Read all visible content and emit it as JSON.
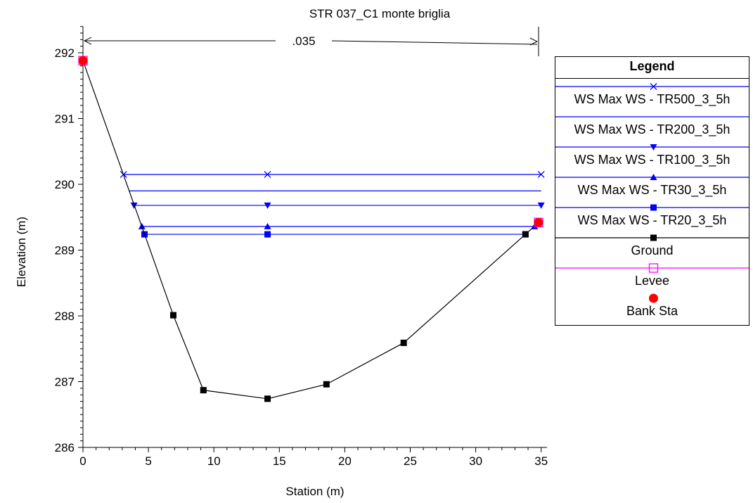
{
  "chart_data": {
    "type": "line",
    "title": "STR 037_C1 monte briglia",
    "xlabel": "Station (m)",
    "ylabel": "Elevation (m)",
    "xlim": [
      0,
      35
    ],
    "ylim": [
      286,
      292.4
    ],
    "xticks": [
      0,
      5,
      10,
      15,
      20,
      25,
      30,
      35
    ],
    "yticks": [
      286,
      287,
      288,
      289,
      290,
      291,
      292
    ],
    "xtick_labels": [
      "0",
      "5",
      "10",
      "15",
      "20",
      "25",
      "30",
      "35"
    ],
    "ytick_labels": [
      "286",
      "287",
      "288",
      "289",
      "290",
      "291",
      "292"
    ],
    "roughness": {
      "label": ".035",
      "x_start": 0,
      "x_end": 34.8
    },
    "legend_title": "Legend",
    "legend_position": "right",
    "grid": false,
    "series": [
      {
        "name": "WS Max WS - TR500_3_5h",
        "color": "#0000ff",
        "marker": "x",
        "x": [
          3.1,
          14.1,
          35
        ],
        "y": [
          290.15,
          290.15,
          290.15
        ]
      },
      {
        "name": "WS Max WS - TR200_3_5h",
        "color": "#0000ff",
        "marker": "none",
        "x": [
          3.5,
          35
        ],
        "y": [
          289.9,
          289.9
        ]
      },
      {
        "name": "WS Max WS - TR100_3_5h",
        "color": "#0000ff",
        "marker": "triangle-down",
        "x": [
          3.9,
          14.1,
          35
        ],
        "y": [
          289.68,
          289.68,
          289.68
        ]
      },
      {
        "name": "WS Max WS - TR30_3_5h",
        "color": "#0000ff",
        "marker": "triangle-up",
        "x": [
          4.5,
          14.1,
          34.5
        ],
        "y": [
          289.36,
          289.36,
          289.36
        ]
      },
      {
        "name": "WS Max WS - TR20_3_5h",
        "color": "#0000ff",
        "marker": "square",
        "x": [
          4.7,
          14.1,
          33.8
        ],
        "y": [
          289.24,
          289.24,
          289.24
        ]
      },
      {
        "name": "Ground",
        "color": "#000000",
        "marker": "square",
        "x": [
          0,
          6.9,
          9.2,
          14.1,
          18.6,
          24.5,
          33.8,
          34.8
        ],
        "y": [
          291.88,
          288.01,
          286.87,
          286.74,
          286.96,
          287.59,
          289.24,
          289.42
        ]
      },
      {
        "name": "Levee",
        "color": "#ff00ff",
        "marker": "square-open",
        "x": [
          0,
          34.8
        ],
        "y": [
          291.88,
          289.42
        ]
      },
      {
        "name": "Bank Sta",
        "color": "#ff0000",
        "marker": "circle",
        "x": [
          0,
          34.8
        ],
        "y": [
          291.88,
          289.42
        ]
      }
    ]
  }
}
